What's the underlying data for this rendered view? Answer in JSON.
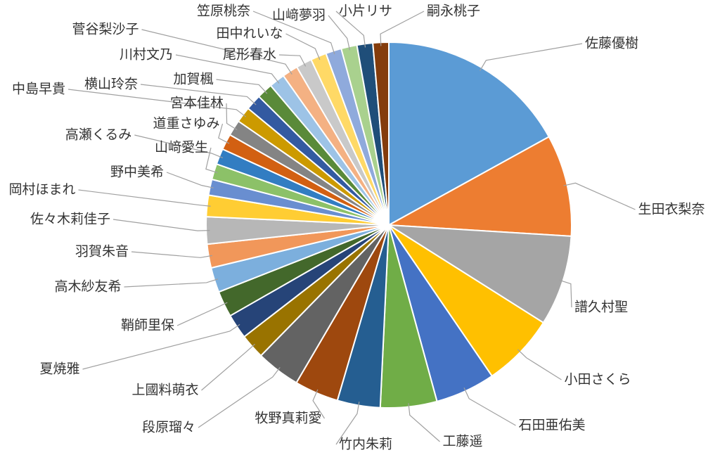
{
  "chart_data": {
    "type": "pie",
    "categories": [
      "佐藤優樹",
      "生田衣梨奈",
      "譜久村聖",
      "小田さくら",
      "石田亜佑美",
      "工藤遥",
      "竹内朱莉",
      "牧野真莉愛",
      "段原瑠々",
      "上國料萌衣",
      "夏焼雅",
      "鞘師里保",
      "高木紗友希",
      "羽賀朱音",
      "佐々木莉佳子",
      "岡村ほまれ",
      "野中美希",
      "山﨑愛生",
      "高瀬くるみ",
      "道重さゆみ",
      "宮本佳林",
      "中島早貴",
      "横山玲奈",
      "加賀楓",
      "川村文乃",
      "菅谷梨沙子",
      "尾形春水",
      "田中れいな",
      "笠原桃奈",
      "山﨑夢羽",
      "小片リサ",
      "嗣永桃子"
    ],
    "values": [
      17,
      9,
      8,
      6.5,
      5.3,
      5,
      3.8,
      3.9,
      3.9,
      2.2,
      2.2,
      2.3,
      2.2,
      2.1,
      2.4,
      1.9,
      1.4,
      1.4,
      1.4,
      1.4,
      1.4,
      1.4,
      1.4,
      1.4,
      1.4,
      1.4,
      1.4,
      1.4,
      1.4,
      1.4,
      1.4,
      1.4
    ],
    "colors": [
      "#5b9bd5",
      "#ed7d31",
      "#a5a5a5",
      "#ffc000",
      "#4472c4",
      "#70ad47",
      "#255e91",
      "#9e480e",
      "#636363",
      "#997300",
      "#264478",
      "#43682b",
      "#7cafdd",
      "#f1975a",
      "#b7b7b7",
      "#ffcd33",
      "#698ed0",
      "#8cc168",
      "#327dc2",
      "#d26012",
      "#848484",
      "#cc9a00",
      "#335aa1",
      "#5a8a39",
      "#9dc3e6",
      "#f4b183",
      "#c9c9c9",
      "#ffd966",
      "#8faadc",
      "#a9d18e",
      "#1f4e79",
      "#843c0c"
    ]
  }
}
